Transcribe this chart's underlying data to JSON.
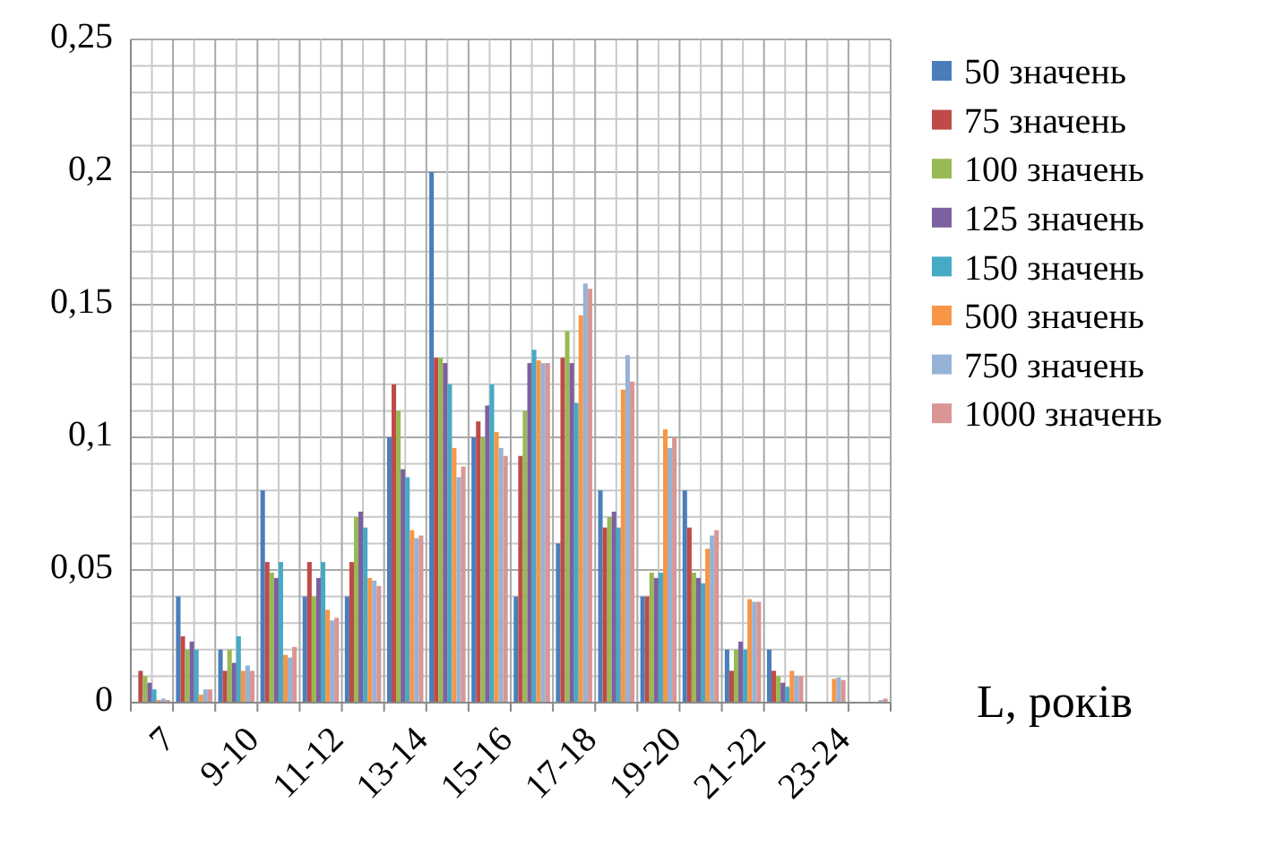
{
  "chart_data": {
    "type": "bar",
    "xlabel": "L, років",
    "categories": [
      "7",
      null,
      "9-10",
      null,
      "11-12",
      null,
      "13-14",
      null,
      "15-16",
      null,
      "17-18",
      null,
      "19-20",
      null,
      "21-22",
      null,
      "23-24",
      null
    ],
    "series": [
      {
        "name": "50 значень",
        "color": "#4a7ebb",
        "values": [
          0,
          0.04,
          0.02,
          0.08,
          0.04,
          0.04,
          0.1,
          0.2,
          0.1,
          0.04,
          0.06,
          0.08,
          0.04,
          0.08,
          0.02,
          0.02,
          0,
          0
        ]
      },
      {
        "name": "75 значень",
        "color": "#be4b48",
        "values": [
          0.012,
          0.025,
          0.012,
          0.053,
          0.053,
          0.053,
          0.12,
          0.13,
          0.106,
          0.093,
          0.13,
          0.066,
          0.04,
          0.066,
          0.012,
          0.012,
          0,
          0
        ]
      },
      {
        "name": "100 значень",
        "color": "#98b954",
        "values": [
          0.01,
          0.02,
          0.02,
          0.049,
          0.04,
          0.07,
          0.11,
          0.13,
          0.1,
          0.11,
          0.14,
          0.07,
          0.049,
          0.049,
          0.02,
          0.01,
          0,
          0
        ]
      },
      {
        "name": "125 значень",
        "color": "#7d60a0",
        "values": [
          0.0075,
          0.023,
          0.015,
          0.047,
          0.047,
          0.072,
          0.088,
          0.128,
          0.112,
          0.128,
          0.128,
          0.072,
          0.047,
          0.047,
          0.023,
          0.0075,
          0,
          0
        ]
      },
      {
        "name": "150 значень",
        "color": "#46aac5",
        "values": [
          0.005,
          0.02,
          0.025,
          0.053,
          0.053,
          0.066,
          0.085,
          0.12,
          0.12,
          0.133,
          0.113,
          0.066,
          0.049,
          0.045,
          0.02,
          0.006,
          0,
          0
        ]
      },
      {
        "name": "500 значень",
        "color": "#f79646",
        "values": [
          0.001,
          0.003,
          0.012,
          0.018,
          0.035,
          0.047,
          0.065,
          0.096,
          0.102,
          0.129,
          0.146,
          0.118,
          0.103,
          0.058,
          0.039,
          0.012,
          0.009,
          0
        ]
      },
      {
        "name": "750 значень",
        "color": "#95b3d7",
        "values": [
          0.0015,
          0.005,
          0.014,
          0.017,
          0.031,
          0.046,
          0.062,
          0.085,
          0.096,
          0.128,
          0.158,
          0.131,
          0.096,
          0.063,
          0.038,
          0.01,
          0.0095,
          0.001
        ]
      },
      {
        "name": "1000 значень",
        "color": "#d99694",
        "values": [
          0.001,
          0.005,
          0.012,
          0.021,
          0.032,
          0.044,
          0.063,
          0.089,
          0.093,
          0.128,
          0.156,
          0.121,
          0.1,
          0.065,
          0.038,
          0.01,
          0.0085,
          0.0015
        ]
      }
    ],
    "ylim": [
      0,
      0.25
    ],
    "yticks": [
      {
        "value": 0,
        "label": "0"
      },
      {
        "value": 0.05,
        "label": "0,05"
      },
      {
        "value": 0.1,
        "label": "0,1"
      },
      {
        "value": 0.15,
        "label": "0,15"
      },
      {
        "value": 0.2,
        "label": "0,2"
      },
      {
        "value": 0.25,
        "label": "0,25"
      }
    ],
    "grid": true,
    "legend": "right"
  }
}
